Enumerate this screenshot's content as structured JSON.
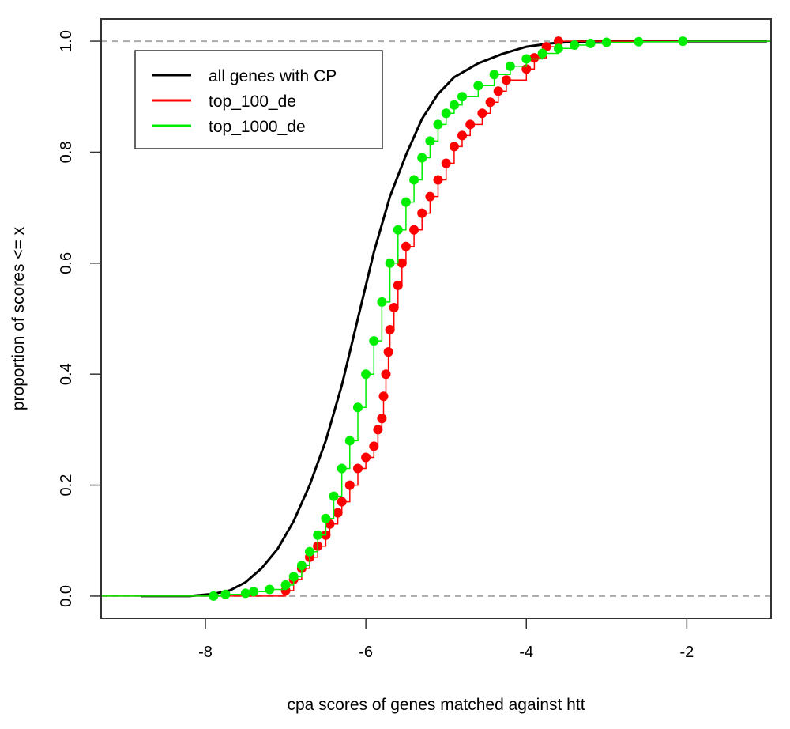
{
  "chart_data": {
    "type": "line",
    "title": "",
    "xlabel": "cpa scores of genes matched against htt",
    "ylabel": "proportion of scores <= x",
    "xlim": [
      -9.3,
      -0.95
    ],
    "ylim": [
      -0.04,
      1.04
    ],
    "x_ticks": [
      -8,
      -6,
      -4,
      -2
    ],
    "x_tick_labels": [
      "-8",
      "-6",
      "-4",
      "-2"
    ],
    "y_ticks": [
      0.0,
      0.2,
      0.4,
      0.6,
      0.8,
      1.0
    ],
    "y_tick_labels": [
      "0.0",
      "0.2",
      "0.4",
      "0.6",
      "0.8",
      "1.0"
    ],
    "reference_lines": [
      0.0,
      1.0
    ],
    "legend_position": "top-left",
    "series": [
      {
        "name": "all genes with CP",
        "color": "#000000",
        "style": "line",
        "points": [
          [
            -8.8,
            0.0
          ],
          [
            -8.2,
            0.0
          ],
          [
            -7.9,
            0.004
          ],
          [
            -7.7,
            0.01
          ],
          [
            -7.5,
            0.025
          ],
          [
            -7.3,
            0.05
          ],
          [
            -7.1,
            0.085
          ],
          [
            -6.9,
            0.135
          ],
          [
            -6.7,
            0.2
          ],
          [
            -6.5,
            0.28
          ],
          [
            -6.3,
            0.38
          ],
          [
            -6.1,
            0.5
          ],
          [
            -5.9,
            0.62
          ],
          [
            -5.7,
            0.72
          ],
          [
            -5.5,
            0.795
          ],
          [
            -5.3,
            0.86
          ],
          [
            -5.1,
            0.905
          ],
          [
            -4.9,
            0.935
          ],
          [
            -4.6,
            0.96
          ],
          [
            -4.3,
            0.977
          ],
          [
            -4.0,
            0.99
          ],
          [
            -3.7,
            0.996
          ],
          [
            -3.4,
            0.999
          ],
          [
            -3.0,
            1.0
          ],
          [
            -1.0,
            1.0
          ]
        ]
      },
      {
        "name": "top_100_de",
        "color": "#ff0000",
        "style": "step-points",
        "points": [
          [
            -7.0,
            0.01
          ],
          [
            -6.9,
            0.03
          ],
          [
            -6.8,
            0.05
          ],
          [
            -6.7,
            0.07
          ],
          [
            -6.6,
            0.09
          ],
          [
            -6.5,
            0.11
          ],
          [
            -6.45,
            0.13
          ],
          [
            -6.35,
            0.15
          ],
          [
            -6.3,
            0.17
          ],
          [
            -6.2,
            0.2
          ],
          [
            -6.1,
            0.23
          ],
          [
            -6.0,
            0.25
          ],
          [
            -5.9,
            0.27
          ],
          [
            -5.85,
            0.3
          ],
          [
            -5.8,
            0.32
          ],
          [
            -5.78,
            0.36
          ],
          [
            -5.75,
            0.4
          ],
          [
            -5.72,
            0.44
          ],
          [
            -5.7,
            0.48
          ],
          [
            -5.65,
            0.52
          ],
          [
            -5.6,
            0.56
          ],
          [
            -5.55,
            0.6
          ],
          [
            -5.5,
            0.63
          ],
          [
            -5.4,
            0.66
          ],
          [
            -5.3,
            0.69
          ],
          [
            -5.2,
            0.72
          ],
          [
            -5.1,
            0.75
          ],
          [
            -5.0,
            0.78
          ],
          [
            -4.9,
            0.81
          ],
          [
            -4.8,
            0.83
          ],
          [
            -4.7,
            0.85
          ],
          [
            -4.55,
            0.87
          ],
          [
            -4.45,
            0.89
          ],
          [
            -4.35,
            0.91
          ],
          [
            -4.25,
            0.93
          ],
          [
            -4.0,
            0.95
          ],
          [
            -3.9,
            0.97
          ],
          [
            -3.75,
            0.99
          ],
          [
            -3.6,
            1.0
          ]
        ]
      },
      {
        "name": "top_1000_de",
        "color": "#00ee00",
        "style": "step-points",
        "points": [
          [
            -7.9,
            0.0
          ],
          [
            -7.75,
            0.003
          ],
          [
            -7.5,
            0.005
          ],
          [
            -7.4,
            0.008
          ],
          [
            -7.2,
            0.012
          ],
          [
            -7.0,
            0.02
          ],
          [
            -6.9,
            0.035
          ],
          [
            -6.8,
            0.055
          ],
          [
            -6.7,
            0.08
          ],
          [
            -6.6,
            0.11
          ],
          [
            -6.5,
            0.14
          ],
          [
            -6.4,
            0.18
          ],
          [
            -6.3,
            0.23
          ],
          [
            -6.2,
            0.28
          ],
          [
            -6.1,
            0.34
          ],
          [
            -6.0,
            0.4
          ],
          [
            -5.9,
            0.46
          ],
          [
            -5.8,
            0.53
          ],
          [
            -5.7,
            0.6
          ],
          [
            -5.6,
            0.66
          ],
          [
            -5.5,
            0.71
          ],
          [
            -5.4,
            0.75
          ],
          [
            -5.3,
            0.79
          ],
          [
            -5.2,
            0.82
          ],
          [
            -5.1,
            0.85
          ],
          [
            -5.0,
            0.87
          ],
          [
            -4.9,
            0.885
          ],
          [
            -4.8,
            0.9
          ],
          [
            -4.6,
            0.92
          ],
          [
            -4.4,
            0.94
          ],
          [
            -4.2,
            0.955
          ],
          [
            -4.0,
            0.968
          ],
          [
            -3.8,
            0.978
          ],
          [
            -3.6,
            0.987
          ],
          [
            -3.4,
            0.993
          ],
          [
            -3.2,
            0.996
          ],
          [
            -3.0,
            0.998
          ],
          [
            -2.6,
            0.999
          ],
          [
            -2.05,
            1.0
          ]
        ]
      }
    ]
  }
}
